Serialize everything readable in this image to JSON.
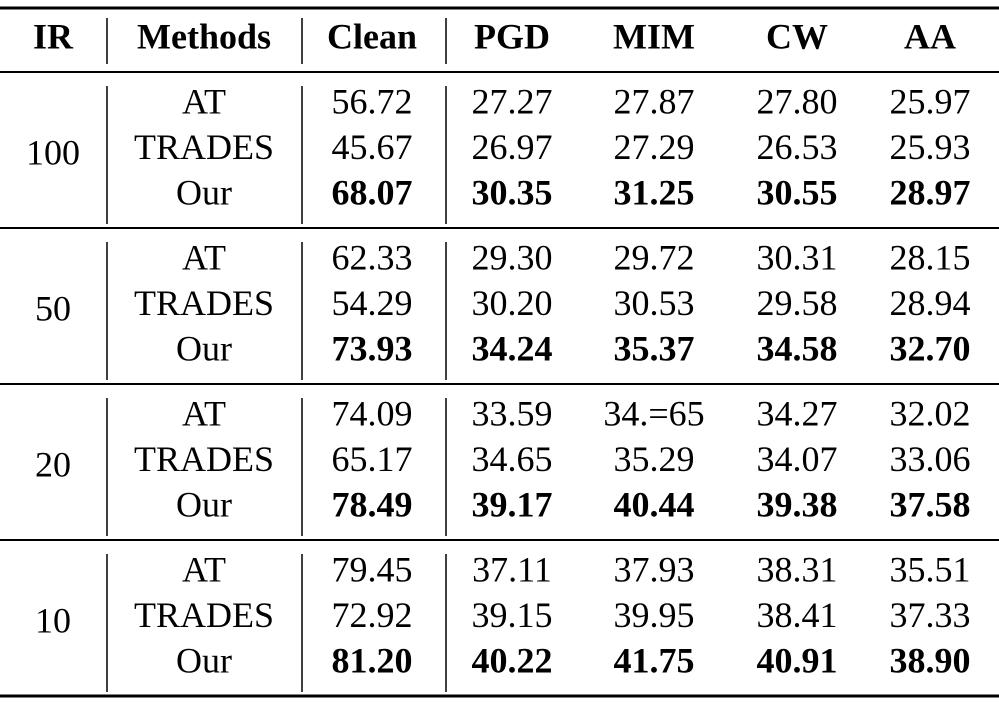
{
  "table": {
    "header": [
      "IR",
      "Methods",
      "Clean",
      "PGD",
      "MIM",
      "CW",
      "AA"
    ],
    "groups": [
      {
        "ir": "100",
        "rows": [
          {
            "method": "AT",
            "values": [
              "56.72",
              "27.27",
              "27.87",
              "27.80",
              "25.97"
            ]
          },
          {
            "method": "TRADES",
            "values": [
              "45.67",
              "26.97",
              "27.29",
              "26.53",
              "25.93"
            ]
          },
          {
            "method": "Our",
            "values": [
              "68.07",
              "30.35",
              "31.25",
              "30.55",
              "28.97"
            ]
          }
        ]
      },
      {
        "ir": "50",
        "rows": [
          {
            "method": "AT",
            "values": [
              "62.33",
              "29.30",
              "29.72",
              "30.31",
              "28.15"
            ]
          },
          {
            "method": "TRADES",
            "values": [
              "54.29",
              "30.20",
              "30.53",
              "29.58",
              "28.94"
            ]
          },
          {
            "method": "Our",
            "values": [
              "73.93",
              "34.24",
              "35.37",
              "34.58",
              "32.70"
            ]
          }
        ]
      },
      {
        "ir": "20",
        "rows": [
          {
            "method": "AT",
            "values": [
              "74.09",
              "33.59",
              "34.=65",
              "34.27",
              "32.02"
            ]
          },
          {
            "method": "TRADES",
            "values": [
              "65.17",
              "34.65",
              "35.29",
              "34.07",
              "33.06"
            ]
          },
          {
            "method": "Our",
            "values": [
              "78.49",
              "39.17",
              "40.44",
              "39.38",
              "37.58"
            ]
          }
        ]
      },
      {
        "ir": "10",
        "rows": [
          {
            "method": "AT",
            "values": [
              "79.45",
              "37.11",
              "37.93",
              "38.31",
              "35.51"
            ]
          },
          {
            "method": "TRADES",
            "values": [
              "72.92",
              "39.15",
              "39.95",
              "38.41",
              "37.33"
            ]
          },
          {
            "method": "Our",
            "values": [
              "81.20",
              "40.22",
              "41.75",
              "40.91",
              "38.90"
            ]
          }
        ]
      }
    ]
  }
}
